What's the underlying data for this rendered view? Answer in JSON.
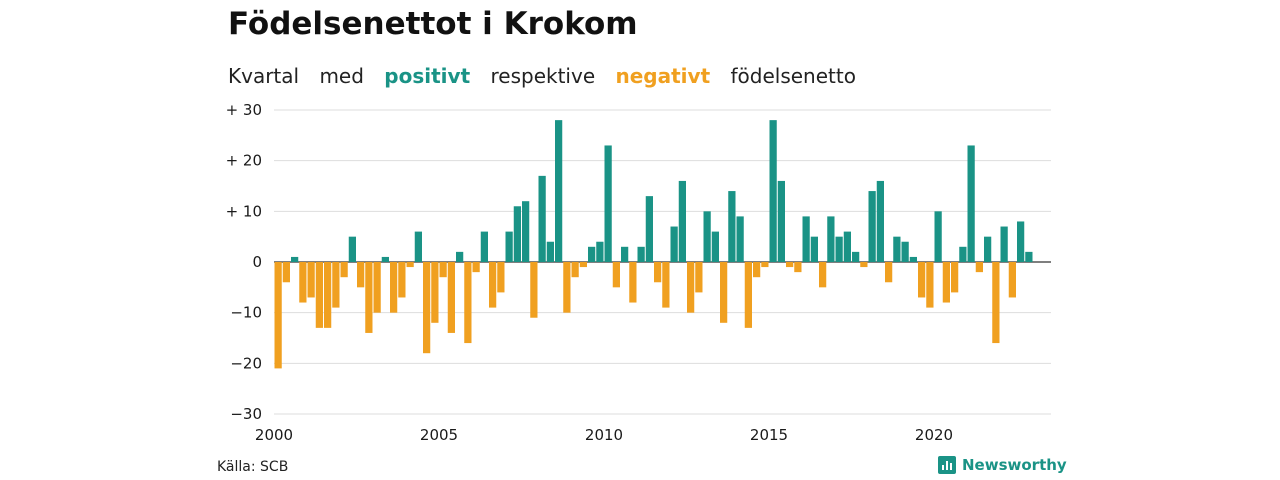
{
  "title": "Födelsenettot i Krokom",
  "subtitle": {
    "part1": "Kvartal",
    "part2": "med",
    "positive": "positivt",
    "part3": "respektive",
    "negative": "negativt",
    "part4": "födelsenetto"
  },
  "source": "Källa: SCB",
  "brand": "Newsworthy",
  "colors": {
    "positive": "#1a9386",
    "negative": "#f0a020",
    "grid": "#dddddd",
    "axis": "#333333"
  },
  "chart_data": {
    "type": "bar",
    "title": "Födelsenettot i Krokom",
    "subtitle": "Kvartal med positivt respektive negativt födelsenetto",
    "xlabel": "",
    "ylabel": "",
    "ylim": [
      -30,
      30
    ],
    "y_ticks": [
      30,
      20,
      10,
      0,
      -10,
      -20,
      -30
    ],
    "y_tick_labels": [
      "+ 30",
      "+ 20",
      "+ 10",
      "0",
      "−10",
      "−20",
      "−30"
    ],
    "x_tick_labels": [
      "2000",
      "2005",
      "2010",
      "2015",
      "2020"
    ],
    "grid": true,
    "legend": "none",
    "start_year": 2000,
    "quarters_per_year": 4,
    "values": [
      -21,
      -4,
      1,
      -8,
      -7,
      -13,
      -13,
      -9,
      -3,
      5,
      -5,
      -14,
      -10,
      1,
      -10,
      -7,
      -1,
      6,
      -18,
      -12,
      -3,
      -14,
      2,
      -16,
      -2,
      6,
      -9,
      -6,
      6,
      11,
      12,
      -11,
      17,
      4,
      28,
      -10,
      -3,
      -1,
      3,
      4,
      23,
      -5,
      3,
      -8,
      3,
      13,
      -4,
      -9,
      7,
      16,
      -10,
      -6,
      10,
      6,
      -12,
      14,
      9,
      -13,
      -3,
      -1,
      28,
      16,
      -1,
      -2,
      9,
      5,
      -5,
      9,
      5,
      6,
      2,
      -1,
      14,
      16,
      -4,
      5,
      4,
      1,
      -7,
      -9,
      10,
      -8,
      -6,
      3,
      23,
      -2,
      5,
      -16,
      7,
      -7,
      8,
      2
    ]
  }
}
